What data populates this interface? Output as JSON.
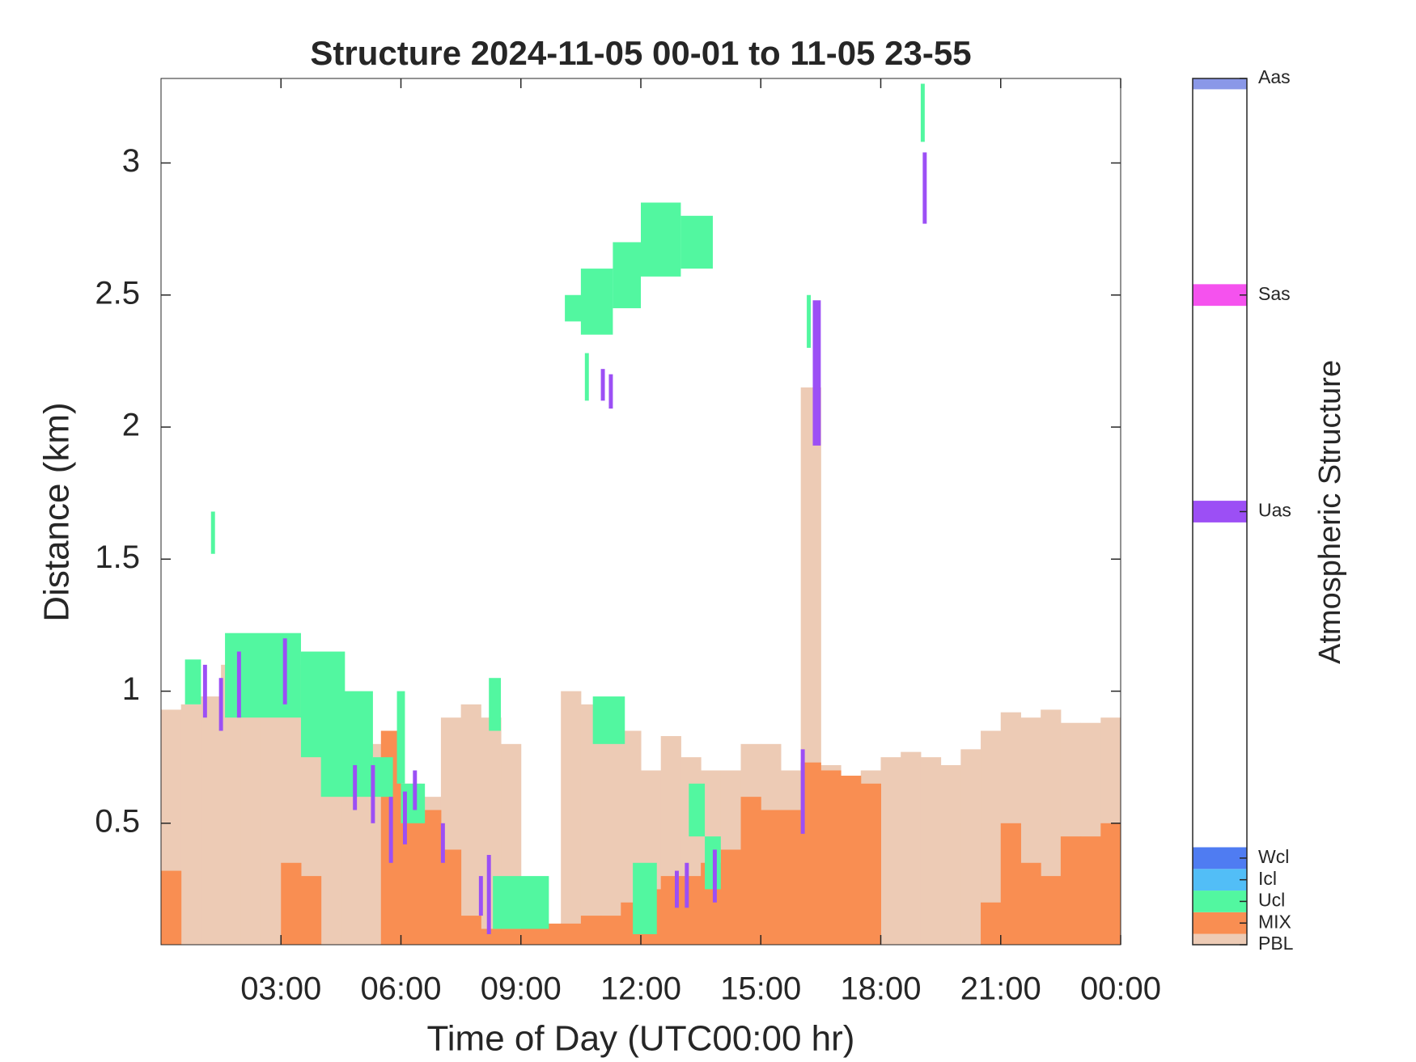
{
  "chart_data": {
    "type": "structure",
    "title": "Structure 2024-11-05 00-01 to 11-05 23-55",
    "xlabel": "Time of Day (UTC00:00 hr)",
    "ylabel": "Distance (km)",
    "colorbar_label": "Atmospheric Structure",
    "xlim": [
      0,
      24
    ],
    "xticks": [
      {
        "value": 3,
        "label": "03:00"
      },
      {
        "value": 6,
        "label": "06:00"
      },
      {
        "value": 9,
        "label": "09:00"
      },
      {
        "value": 12,
        "label": "12:00"
      },
      {
        "value": 15,
        "label": "15:00"
      },
      {
        "value": 18,
        "label": "18:00"
      },
      {
        "value": 21,
        "label": "21:00"
      },
      {
        "value": 24,
        "label": "00:00"
      }
    ],
    "ylim": [
      0.04,
      3.32
    ],
    "yticks": [
      0.5,
      1,
      1.5,
      2,
      2.5,
      3
    ],
    "clim": [
      0,
      40
    ],
    "cticks": [
      {
        "value": 0,
        "label": "PBL",
        "color": "#edcbb5"
      },
      {
        "value": 1,
        "label": "MIX",
        "color": "#f98e52"
      },
      {
        "value": 2,
        "label": "Ucl",
        "color": "#52f7a0"
      },
      {
        "value": 3,
        "label": "Icl",
        "color": "#52bef7"
      },
      {
        "value": 4,
        "label": "Wcl",
        "color": "#4f7cf2"
      },
      {
        "value": 20,
        "label": "Uas",
        "color": "#9c4ff5"
      },
      {
        "value": 30,
        "label": "Sas",
        "color": "#f552ee"
      },
      {
        "value": 40,
        "label": "Aas",
        "color": "#8a98e8"
      }
    ],
    "x": [
      0,
      0.5,
      1,
      1.5,
      2,
      2.5,
      3,
      3.5,
      4,
      4.5,
      5,
      5.5,
      6,
      6.5,
      7,
      7.5,
      8,
      8.5,
      9,
      9.5,
      10,
      10.5,
      11,
      11.5,
      12,
      12.5,
      13,
      13.5,
      14,
      14.5,
      15,
      15.5,
      16,
      16.5,
      17,
      17.5,
      18,
      18.5,
      19,
      19.5,
      20,
      20.5,
      21,
      21.5,
      22,
      22.5,
      23,
      23.5
    ],
    "pbl_top": [
      0.93,
      0.95,
      0.98,
      1.1,
      1.15,
      1.1,
      1.1,
      1.0,
      0.95,
      1.0,
      0.8,
      0.75,
      0.65,
      0.6,
      0.9,
      0.95,
      0.9,
      0.8,
      null,
      null,
      1.0,
      0.95,
      0.92,
      0.85,
      0.7,
      0.83,
      0.75,
      0.7,
      0.7,
      0.8,
      0.8,
      0.7,
      2.15,
      0.72,
      0.68,
      0.7,
      0.75,
      0.77,
      0.75,
      0.72,
      0.78,
      0.85,
      0.92,
      0.9,
      0.93,
      0.88,
      0.88,
      0.9
    ],
    "mix_top": [
      0.32,
      null,
      null,
      null,
      null,
      null,
      0.35,
      0.3,
      null,
      null,
      null,
      0.85,
      0.6,
      0.55,
      0.4,
      0.15,
      0.1,
      0.1,
      0.12,
      0.12,
      0.12,
      0.15,
      0.15,
      0.2,
      0.25,
      0.3,
      0.3,
      0.35,
      0.4,
      0.6,
      0.55,
      0.55,
      0.73,
      0.7,
      0.68,
      0.65,
      null,
      null,
      null,
      null,
      null,
      0.2,
      0.5,
      0.35,
      0.3,
      0.45,
      0.45,
      0.5
    ],
    "segments": [
      {
        "start": 0.6,
        "end": 1.0,
        "bottom": 0.95,
        "top": 1.12,
        "class": "Ucl"
      },
      {
        "start": 1.25,
        "end": 1.35,
        "bottom": 1.52,
        "top": 1.68,
        "class": "Ucl"
      },
      {
        "start": 1.6,
        "end": 3.5,
        "bottom": 0.9,
        "top": 1.22,
        "class": "Ucl"
      },
      {
        "start": 3.5,
        "end": 4.6,
        "bottom": 0.75,
        "top": 1.15,
        "class": "Ucl"
      },
      {
        "start": 4.0,
        "end": 5.3,
        "bottom": 0.6,
        "top": 1.0,
        "class": "Ucl"
      },
      {
        "start": 5.3,
        "end": 5.8,
        "bottom": 0.6,
        "top": 0.75,
        "class": "Ucl"
      },
      {
        "start": 5.9,
        "end": 6.1,
        "bottom": 0.65,
        "top": 1.0,
        "class": "Ucl"
      },
      {
        "start": 6.0,
        "end": 6.6,
        "bottom": 0.5,
        "top": 0.65,
        "class": "Ucl"
      },
      {
        "start": 8.2,
        "end": 8.5,
        "bottom": 0.85,
        "top": 1.05,
        "class": "Ucl"
      },
      {
        "start": 8.3,
        "end": 9.7,
        "bottom": 0.1,
        "top": 0.3,
        "class": "Ucl"
      },
      {
        "start": 10.1,
        "end": 10.6,
        "bottom": 2.4,
        "top": 2.5,
        "class": "Ucl"
      },
      {
        "start": 10.5,
        "end": 11.3,
        "bottom": 2.35,
        "top": 2.6,
        "class": "Ucl"
      },
      {
        "start": 11.3,
        "end": 12.0,
        "bottom": 2.45,
        "top": 2.7,
        "class": "Ucl"
      },
      {
        "start": 12.0,
        "end": 13.0,
        "bottom": 2.57,
        "top": 2.85,
        "class": "Ucl"
      },
      {
        "start": 13.0,
        "end": 13.8,
        "bottom": 2.6,
        "top": 2.8,
        "class": "Ucl"
      },
      {
        "start": 10.6,
        "end": 10.7,
        "bottom": 2.1,
        "top": 2.28,
        "class": "Ucl"
      },
      {
        "start": 10.8,
        "end": 11.6,
        "bottom": 0.8,
        "top": 0.98,
        "class": "Ucl"
      },
      {
        "start": 11.8,
        "end": 12.4,
        "bottom": 0.08,
        "top": 0.35,
        "class": "Ucl"
      },
      {
        "start": 13.2,
        "end": 13.6,
        "bottom": 0.45,
        "top": 0.65,
        "class": "Ucl"
      },
      {
        "start": 13.6,
        "end": 14.0,
        "bottom": 0.25,
        "top": 0.45,
        "class": "Ucl"
      },
      {
        "start": 16.15,
        "end": 16.25,
        "bottom": 2.3,
        "top": 2.5,
        "class": "Ucl"
      },
      {
        "start": 19.0,
        "end": 19.1,
        "bottom": 3.08,
        "top": 3.3,
        "class": "Ucl"
      },
      {
        "start": 1.05,
        "end": 1.15,
        "bottom": 0.9,
        "top": 1.1,
        "class": "Uas"
      },
      {
        "start": 1.45,
        "end": 1.55,
        "bottom": 0.85,
        "top": 1.05,
        "class": "Uas"
      },
      {
        "start": 1.9,
        "end": 2.0,
        "bottom": 0.9,
        "top": 1.15,
        "class": "Uas"
      },
      {
        "start": 3.05,
        "end": 3.15,
        "bottom": 0.95,
        "top": 1.2,
        "class": "Uas"
      },
      {
        "start": 4.8,
        "end": 4.9,
        "bottom": 0.55,
        "top": 0.72,
        "class": "Uas"
      },
      {
        "start": 5.25,
        "end": 5.35,
        "bottom": 0.5,
        "top": 0.72,
        "class": "Uas"
      },
      {
        "start": 5.7,
        "end": 5.8,
        "bottom": 0.35,
        "top": 0.6,
        "class": "Uas"
      },
      {
        "start": 6.05,
        "end": 6.15,
        "bottom": 0.42,
        "top": 0.62,
        "class": "Uas"
      },
      {
        "start": 6.3,
        "end": 6.4,
        "bottom": 0.55,
        "top": 0.7,
        "class": "Uas"
      },
      {
        "start": 7.0,
        "end": 7.1,
        "bottom": 0.35,
        "top": 0.5,
        "class": "Uas"
      },
      {
        "start": 7.95,
        "end": 8.05,
        "bottom": 0.15,
        "top": 0.3,
        "class": "Uas"
      },
      {
        "start": 8.15,
        "end": 8.25,
        "bottom": 0.08,
        "top": 0.38,
        "class": "Uas"
      },
      {
        "start": 11.0,
        "end": 11.1,
        "bottom": 2.1,
        "top": 2.22,
        "class": "Uas"
      },
      {
        "start": 11.2,
        "end": 11.3,
        "bottom": 2.07,
        "top": 2.2,
        "class": "Uas"
      },
      {
        "start": 12.85,
        "end": 12.95,
        "bottom": 0.18,
        "top": 0.32,
        "class": "Uas"
      },
      {
        "start": 13.1,
        "end": 13.2,
        "bottom": 0.18,
        "top": 0.35,
        "class": "Uas"
      },
      {
        "start": 13.8,
        "end": 13.9,
        "bottom": 0.2,
        "top": 0.4,
        "class": "Uas"
      },
      {
        "start": 16.0,
        "end": 16.1,
        "bottom": 0.46,
        "top": 0.78,
        "class": "Uas"
      },
      {
        "start": 16.3,
        "end": 16.5,
        "bottom": 1.93,
        "top": 2.48,
        "class": "Uas"
      },
      {
        "start": 19.05,
        "end": 19.15,
        "bottom": 2.77,
        "top": 3.04,
        "class": "Uas"
      }
    ]
  }
}
